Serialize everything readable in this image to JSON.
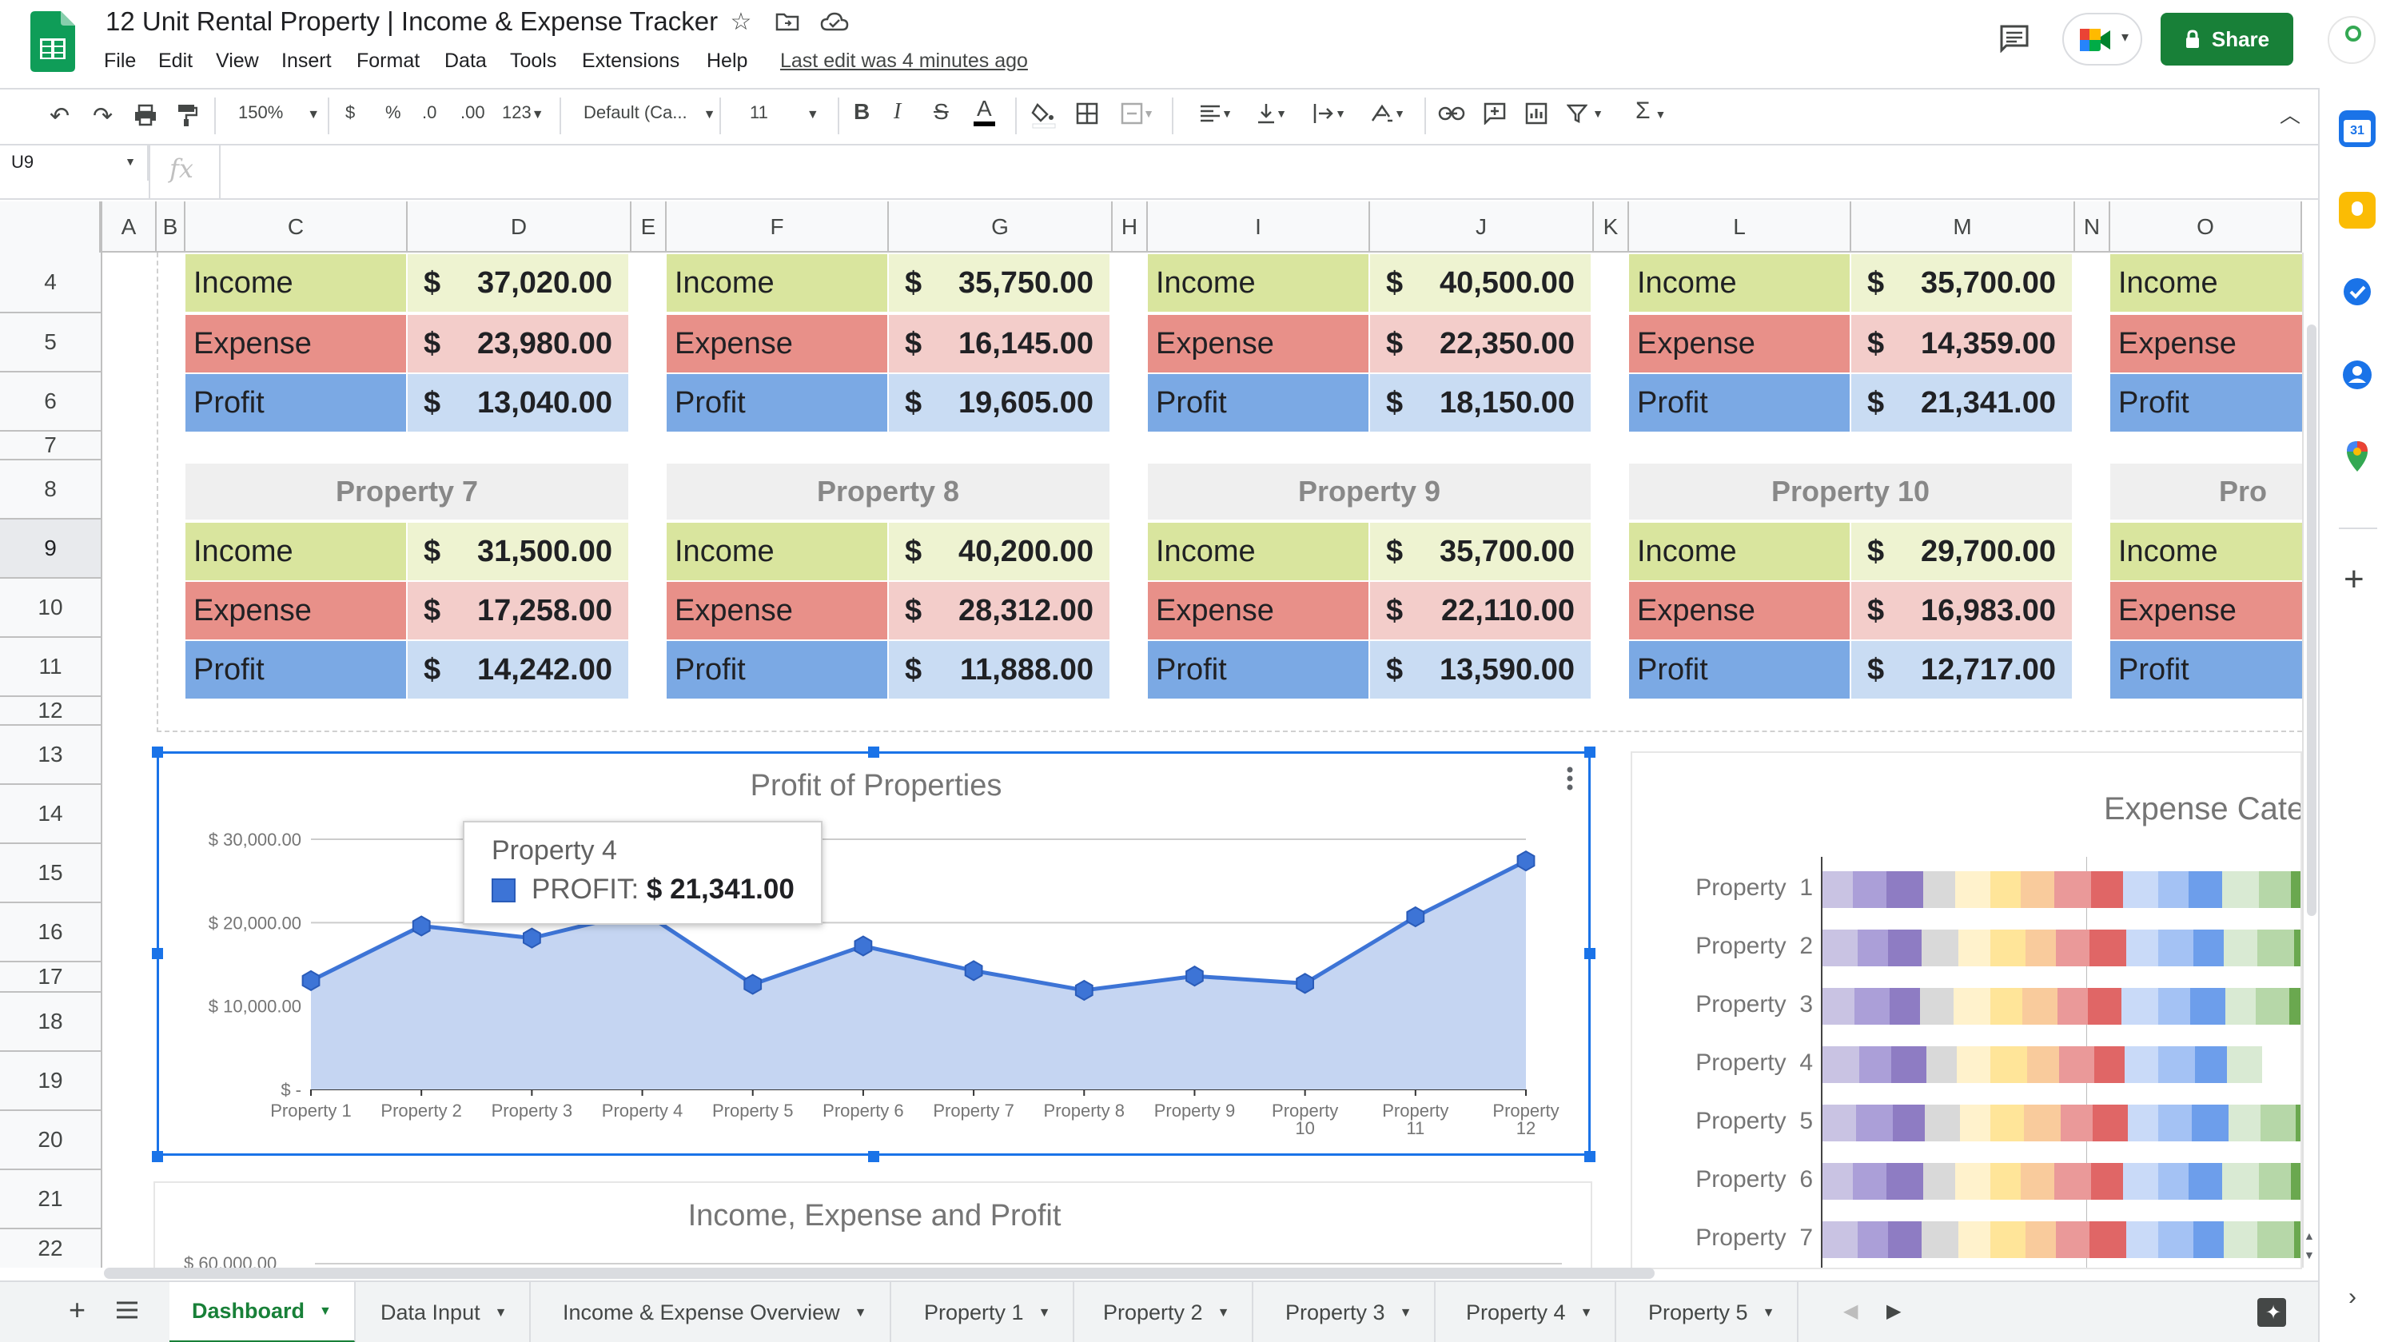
{
  "app": {
    "title": "12 Unit Rental Property | Income & Expense Tracker",
    "last_edit": "Last edit was 4 minutes ago",
    "share_label": "Share",
    "menu": [
      "File",
      "Edit",
      "View",
      "Insert",
      "Format",
      "Data",
      "Tools",
      "Extensions",
      "Help"
    ]
  },
  "toolbar": {
    "zoom": "150%",
    "currency": "$",
    "percent": "%",
    "dec_less": ".0",
    "dec_more": ".00",
    "number_format": "123",
    "font": "Default (Ca...",
    "font_size": "11",
    "bold": "B",
    "italic": "I",
    "strike": "S",
    "text_color": "A",
    "sum": "Σ"
  },
  "formula_bar": {
    "cell_ref": "U9",
    "fx": "fx",
    "value": ""
  },
  "columns": [
    "A",
    "B",
    "C",
    "D",
    "E",
    "F",
    "G",
    "H",
    "I",
    "J",
    "K",
    "L",
    "M",
    "N",
    "O"
  ],
  "rows": [
    "4",
    "5",
    "6",
    "7",
    "8",
    "9",
    "10",
    "11",
    "12",
    "13",
    "14",
    "15",
    "16",
    "17",
    "18",
    "19",
    "20",
    "21",
    "22"
  ],
  "selected_row": "9",
  "labels": {
    "income": "Income",
    "expense": "Expense",
    "profit": "Profit",
    "currency": "$"
  },
  "top_blocks": [
    {
      "income": "37,020.00",
      "expense": "23,980.00",
      "profit": "13,040.00"
    },
    {
      "income": "35,750.00",
      "expense": "16,145.00",
      "profit": "19,605.00"
    },
    {
      "income": "40,500.00",
      "expense": "22,350.00",
      "profit": "18,150.00"
    },
    {
      "income": "35,700.00",
      "expense": "14,359.00",
      "profit": "21,341.00"
    },
    {
      "income": "",
      "expense": "",
      "profit": ""
    }
  ],
  "bottom_blocks": [
    {
      "title": "Property 7",
      "income": "31,500.00",
      "expense": "17,258.00",
      "profit": "14,242.00"
    },
    {
      "title": "Property 8",
      "income": "40,200.00",
      "expense": "28,312.00",
      "profit": "11,888.00"
    },
    {
      "title": "Property 9",
      "income": "35,700.00",
      "expense": "22,110.00",
      "profit": "13,590.00"
    },
    {
      "title": "Property 10",
      "income": "29,700.00",
      "expense": "16,983.00",
      "profit": "12,717.00"
    },
    {
      "title": "Pro",
      "income": "",
      "expense": "",
      "profit": ""
    }
  ],
  "chart_data": [
    {
      "type": "area",
      "title": "Profit of Properties",
      "categories": [
        "Property 1",
        "Property 2",
        "Property 3",
        "Property 4",
        "Property 5",
        "Property 6",
        "Property 7",
        "Property 8",
        "Property 9",
        "Property 10",
        "Property 11",
        "Property 12"
      ],
      "series": [
        {
          "name": "PROFIT",
          "values": [
            13040,
            19605,
            18150,
            21341,
            12600,
            17200,
            14242,
            11888,
            13590,
            12717,
            20700,
            27400
          ]
        }
      ],
      "y_ticks": [
        "$ -",
        "$ 10,000.00",
        "$ 20,000.00",
        "$ 30,000.00"
      ],
      "ylim": [
        0,
        30000
      ],
      "color": "#3d74d6",
      "fill": "#c5d5f2",
      "tooltip": {
        "title": "Property 4",
        "label": "PROFIT:",
        "value": "$ 21,341.00"
      }
    },
    {
      "type": "bar",
      "title": "Income, Expense and Profit",
      "y_ticks": [
        "$ 60,000.00"
      ]
    },
    {
      "type": "bar",
      "title": "Expense Cate",
      "categories": [
        "Property  1",
        "Property  2",
        "Property  3",
        "Property  4",
        "Property  5",
        "Property  6",
        "Property  7"
      ],
      "segment_colors": [
        "#c9c3e3",
        "#ab9fd8",
        "#8e7cc3",
        "#d9d9d9",
        "#fff2cc",
        "#ffe599",
        "#f9cb9c",
        "#ea9999",
        "#e06666",
        "#c9daf8",
        "#a4c2f4",
        "#6d9eeb",
        "#d9ead3",
        "#b6d7a8",
        "#6aa84f",
        "#f6b26b",
        "#e69138"
      ],
      "row_segments": [
        17,
        15,
        17,
        13,
        17,
        17,
        16
      ]
    }
  ],
  "tabs": [
    "Dashboard",
    "Data Input",
    "Income & Expense Overview",
    "Property 1",
    "Property 2",
    "Property 3",
    "Property 4",
    "Property 5"
  ],
  "active_tab": "Dashboard"
}
